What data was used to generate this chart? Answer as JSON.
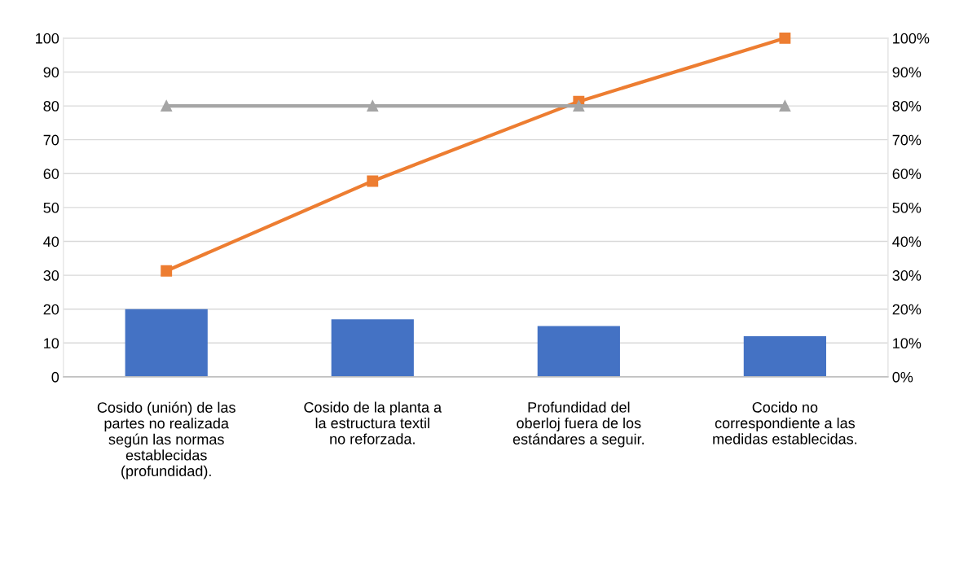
{
  "chart_data": {
    "type": "bar",
    "categories": [
      "Cosido (unión) de las partes no realizada según las normas establecidas (profundidad).",
      "Cosido de la planta a la estructura textil no reforzada.",
      "Profundidad del oberloj fuera de los estándares a seguir.",
      "Cocido no correspondiente a las medidas establecidas."
    ],
    "series": [
      {
        "color": "#4472c4",
        "values": [
          20,
          17,
          15,
          12
        ]
      },
      {
        "type": "line",
        "axis": "y2",
        "color": "#ed7d31",
        "marker": "square",
        "values": [
          31.3,
          57.8,
          81.3,
          100
        ]
      },
      {
        "type": "line",
        "axis": "y2",
        "color": "#a5a5a5",
        "marker": "triangle",
        "values": [
          80,
          80,
          80,
          80
        ]
      }
    ],
    "ylim": [
      0,
      100
    ],
    "yticks": [
      0,
      10,
      20,
      30,
      40,
      50,
      60,
      70,
      80,
      90,
      100
    ],
    "y2lim": [
      0,
      100
    ],
    "y2ticks": [
      {
        "value": 0,
        "label": "0%"
      },
      {
        "value": 10,
        "label": "10%"
      },
      {
        "value": 20,
        "label": "20%"
      },
      {
        "value": 30,
        "label": "30%"
      },
      {
        "value": 40,
        "label": "40%"
      },
      {
        "value": 50,
        "label": "50%"
      },
      {
        "value": 60,
        "label": "60%"
      },
      {
        "value": 70,
        "label": "70%"
      },
      {
        "value": 80,
        "label": "80%"
      },
      {
        "value": 90,
        "label": "90%"
      },
      {
        "value": 100,
        "label": "100%"
      }
    ],
    "grid": "y",
    "legend": false
  }
}
